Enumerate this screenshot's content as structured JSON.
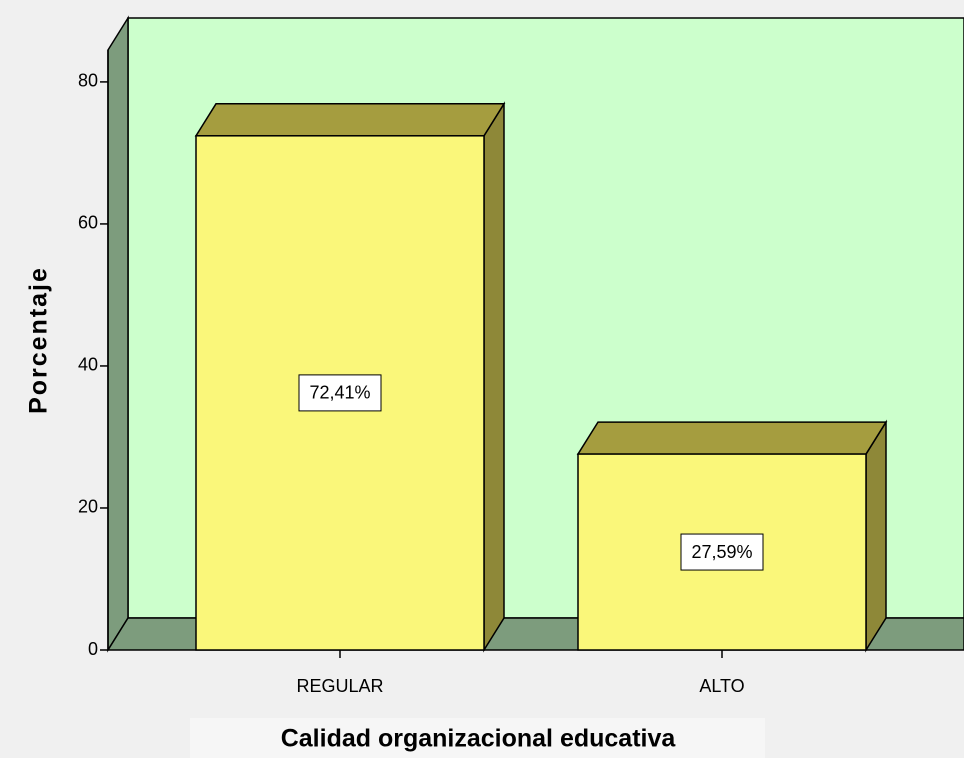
{
  "chart_data": {
    "type": "bar",
    "x_label": "Calidad organizacional educativa",
    "y_label": "Porcentaje",
    "categories": [
      "REGULAR",
      "ALTO"
    ],
    "values": [
      72.41,
      27.59
    ],
    "value_labels": [
      "72,41%",
      "27,59%"
    ],
    "color": "#faf77a",
    "ylim": [
      0,
      89
    ],
    "yticks": [
      0,
      20,
      40,
      60,
      80
    ]
  }
}
